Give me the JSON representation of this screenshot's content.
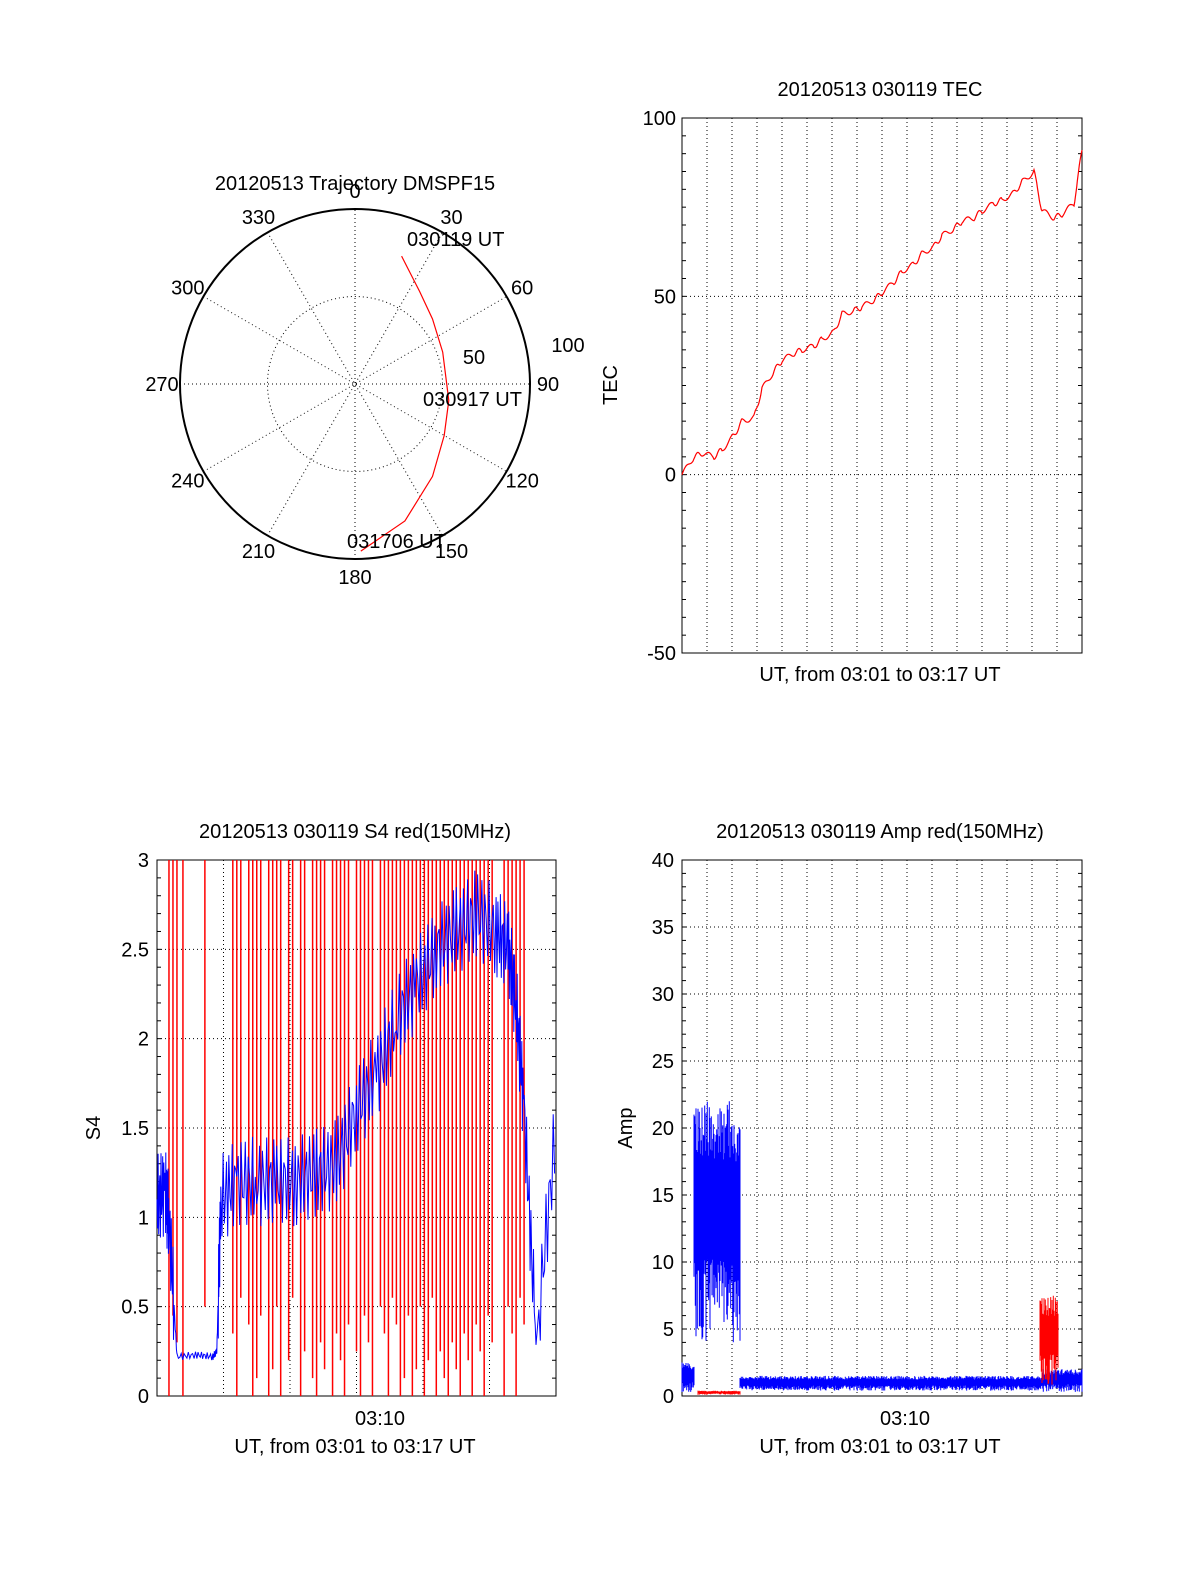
{
  "chart_data": [
    {
      "type": "polar",
      "title": "20120513 Trajectory DMSPF15",
      "angle_labels": [
        "0",
        "30",
        "60",
        "90",
        "120",
        "150",
        "180",
        "210",
        "240",
        "270",
        "300",
        "330"
      ],
      "radial_ticks": [
        "50",
        "100"
      ],
      "rlim": [
        0,
        100
      ],
      "grid": true,
      "series": [
        {
          "color": "#ff0000",
          "points": [
            {
              "az": 20,
              "el": 20
            },
            {
              "az": 25,
              "el": 25
            },
            {
              "az": 35,
              "el": 32
            },
            {
              "az": 50,
              "el": 38
            },
            {
              "az": 70,
              "el": 42
            },
            {
              "az": 100,
              "el": 41
            },
            {
              "az": 120,
              "el": 37
            },
            {
              "az": 140,
              "el": 28
            },
            {
              "az": 160,
              "el": 15
            },
            {
              "az": 178,
              "el": 4
            }
          ]
        }
      ],
      "annotations": [
        "030119 UT",
        "030917 UT",
        "031706 UT"
      ]
    },
    {
      "type": "line",
      "title": "20120513 030119 TEC",
      "xlabel": "UT, from 03:01 to 03:17 UT",
      "ylabel": "TEC",
      "xlim": [
        0,
        1.0
      ],
      "ylim": [
        -50,
        100
      ],
      "yticks": [
        "100",
        "50",
        "0",
        "-50"
      ],
      "grid": true,
      "series": [
        {
          "color": "#ff0000",
          "x": [
            0,
            0.03,
            0.05,
            0.08,
            0.1,
            0.13,
            0.15,
            0.18,
            0.2,
            0.23,
            0.25,
            0.28,
            0.3,
            0.33,
            0.35,
            0.38,
            0.4,
            0.43,
            0.45,
            0.48,
            0.5,
            0.53,
            0.55,
            0.58,
            0.6,
            0.63,
            0.65,
            0.68,
            0.7,
            0.73,
            0.75,
            0.78,
            0.8,
            0.83,
            0.85,
            0.88,
            0.9,
            0.93,
            0.95,
            0.98,
            1.0
          ],
          "y": [
            0,
            5,
            6,
            5,
            7,
            11,
            15,
            16,
            24,
            29,
            32,
            34,
            35,
            36,
            38,
            40,
            45,
            46,
            47,
            49,
            51,
            54,
            57,
            59,
            62,
            64,
            67,
            69,
            71,
            72,
            74,
            76,
            77,
            79,
            82,
            85,
            74,
            72,
            73,
            76,
            91
          ]
        }
      ]
    },
    {
      "type": "line",
      "title": "20120513 030119 S4 red(150MHz)",
      "xlabel": "UT, from 03:01 to 03:17 UT",
      "ylabel": "S4",
      "xlim": [
        0,
        1.0
      ],
      "ylim": [
        0,
        3
      ],
      "xticks": [
        "03:10"
      ],
      "yticks": [
        "3",
        "2.5",
        "2",
        "1.5",
        "1",
        "0.5",
        "0"
      ],
      "grid": true,
      "series": [
        {
          "color": "#0000ff",
          "x": [
            0.0,
            0.02,
            0.03,
            0.05,
            0.1,
            0.14,
            0.15,
            0.16,
            0.2,
            0.25,
            0.3,
            0.35,
            0.4,
            0.45,
            0.5,
            0.55,
            0.6,
            0.65,
            0.7,
            0.75,
            0.8,
            0.85,
            0.88,
            0.9,
            0.92,
            0.95,
            1.0
          ],
          "y": [
            1.1,
            1.15,
            1.0,
            0.22,
            0.23,
            0.22,
            0.25,
            1.1,
            1.2,
            1.2,
            1.2,
            1.2,
            1.25,
            1.3,
            1.6,
            1.8,
            2.1,
            2.3,
            2.5,
            2.6,
            2.7,
            2.6,
            2.5,
            2.2,
            1.6,
            0.3,
            1.5
          ]
        },
        {
          "color": "#ff0000",
          "spikes_x": [
            0.03,
            0.04,
            0.05,
            0.065,
            0.12,
            0.19,
            0.2,
            0.21,
            0.23,
            0.24,
            0.25,
            0.26,
            0.28,
            0.29,
            0.3,
            0.31,
            0.33,
            0.34,
            0.36,
            0.37,
            0.39,
            0.4,
            0.41,
            0.42,
            0.44,
            0.45,
            0.46,
            0.47,
            0.48,
            0.5,
            0.51,
            0.52,
            0.53,
            0.54,
            0.56,
            0.57,
            0.58,
            0.59,
            0.6,
            0.61,
            0.62,
            0.63,
            0.64,
            0.65,
            0.66,
            0.67,
            0.68,
            0.69,
            0.7,
            0.71,
            0.72,
            0.73,
            0.74,
            0.75,
            0.76,
            0.77,
            0.78,
            0.79,
            0.8,
            0.81,
            0.82,
            0.83,
            0.84,
            0.87,
            0.88,
            0.89,
            0.9,
            0.91,
            0.92
          ]
        }
      ]
    },
    {
      "type": "line",
      "title": "20120513 030119 Amp red(150MHz)",
      "xlabel": "UT, from 03:01 to 03:17 UT",
      "ylabel": "Amp",
      "xlim": [
        0,
        1.0
      ],
      "ylim": [
        0,
        40
      ],
      "xticks": [
        "03:10"
      ],
      "yticks": [
        "40",
        "35",
        "30",
        "25",
        "20",
        "15",
        "10",
        "5",
        "0"
      ],
      "grid": true,
      "series": [
        {
          "color": "#0000ff",
          "bands": [
            {
              "x0": 0.0,
              "x1": 0.03,
              "ymin": 0.3,
              "ymax": 2.5
            },
            {
              "x0": 0.03,
              "x1": 0.145,
              "ymin": 4,
              "ymax": 22
            },
            {
              "x0": 0.145,
              "x1": 0.9,
              "ymin": 0.4,
              "ymax": 1.5
            },
            {
              "x0": 0.9,
              "x1": 1.0,
              "ymin": 0.3,
              "ymax": 2.0
            }
          ]
        },
        {
          "color": "#ff0000",
          "bands": [
            {
              "x0": 0.04,
              "x1": 0.145,
              "ymin": 0.1,
              "ymax": 0.4
            },
            {
              "x0": 0.895,
              "x1": 0.94,
              "ymin": 0.8,
              "ymax": 7.5
            }
          ]
        }
      ]
    }
  ]
}
